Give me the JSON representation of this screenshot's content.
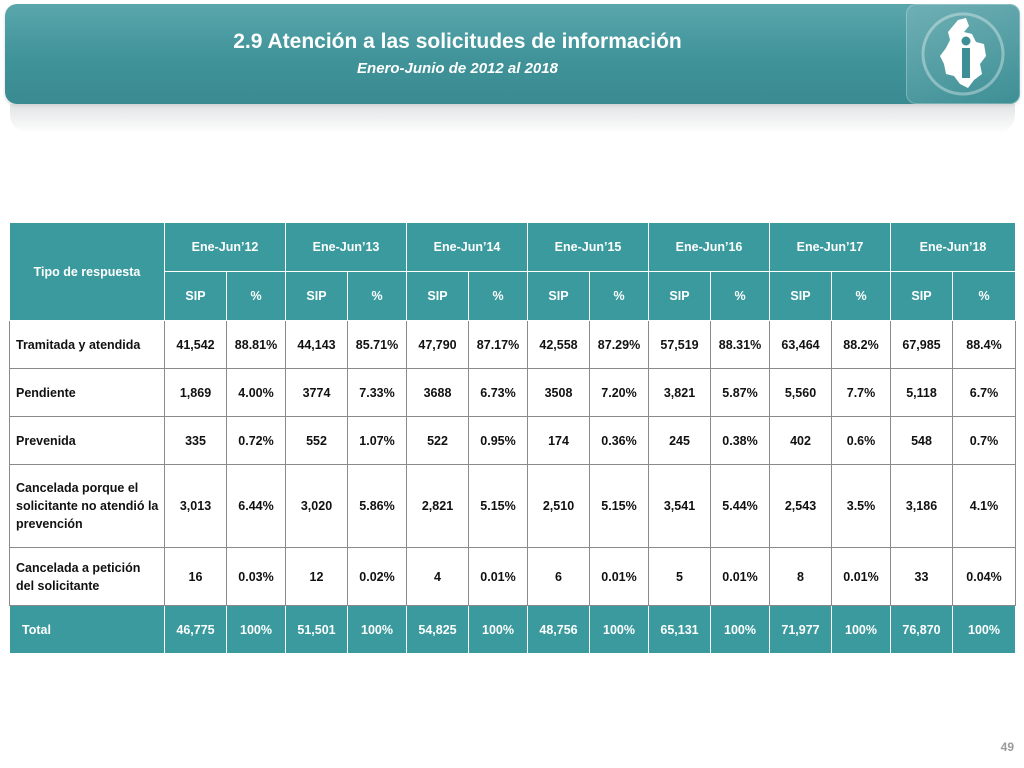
{
  "header": {
    "title": "2.9 Atención a las solicitudes de información",
    "subtitle": "Enero-Junio de 2012 al 2018"
  },
  "table": {
    "corner_label": "Tipo de respuesta",
    "periods": [
      "Ene-Jun’12",
      "Ene-Jun’13",
      "Ene-Jun’14",
      "Ene-Jun’15",
      "Ene-Jun’16",
      "Ene-Jun’17",
      "Ene-Jun’18"
    ],
    "subheaders": [
      "SIP",
      "%",
      "SIP",
      "%",
      "SIP",
      "%",
      "SIP",
      "%",
      "SIP",
      "%",
      "SIP",
      "%",
      "SIP",
      "%"
    ],
    "rows": [
      {
        "label": "Tramitada y atendida",
        "cells": [
          "41,542",
          "88.81%",
          "44,143",
          "85.71%",
          "47,790",
          "87.17%",
          "42,558",
          "87.29%",
          "57,519",
          "88.31%",
          "63,464",
          "88.2%",
          "67,985",
          "88.4%"
        ]
      },
      {
        "label": "Pendiente",
        "cells": [
          "1,869",
          "4.00%",
          "3774",
          "7.33%",
          "3688",
          "6.73%",
          "3508",
          "7.20%",
          "3,821",
          "5.87%",
          "5,560",
          "7.7%",
          "5,118",
          "6.7%"
        ]
      },
      {
        "label": "Prevenida",
        "cells": [
          "335",
          "0.72%",
          "552",
          "1.07%",
          "522",
          "0.95%",
          "174",
          "0.36%",
          "245",
          "0.38%",
          "402",
          "0.6%",
          "548",
          "0.7%"
        ]
      },
      {
        "label": "Cancelada porque el solicitante no atendió la prevención",
        "cells": [
          "3,013",
          "6.44%",
          "3,020",
          "5.86%",
          "2,821",
          "5.15%",
          "2,510",
          "5.15%",
          "3,541",
          "5.44%",
          "2,543",
          "3.5%",
          "3,186",
          "4.1%"
        ]
      },
      {
        "label": "Cancelada a petición del solicitante",
        "cells": [
          "16",
          "0.03%",
          "12",
          "0.02%",
          "4",
          "0.01%",
          "6",
          "0.01%",
          "5",
          "0.01%",
          "8",
          "0.01%",
          "33",
          "0.04%"
        ]
      }
    ],
    "total": {
      "label": "Total",
      "cells": [
        "46,775",
        "100%",
        "51,501",
        "100%",
        "54,825",
        "100%",
        "48,756",
        "100%",
        "65,131",
        "100%",
        "71,977",
        "100%",
        "76,870",
        "100%"
      ]
    }
  },
  "footer": {
    "page_number": "49"
  },
  "colors": {
    "accent": "#3b9a9e",
    "banner": "#4a9ca2",
    "text": "#111111"
  }
}
